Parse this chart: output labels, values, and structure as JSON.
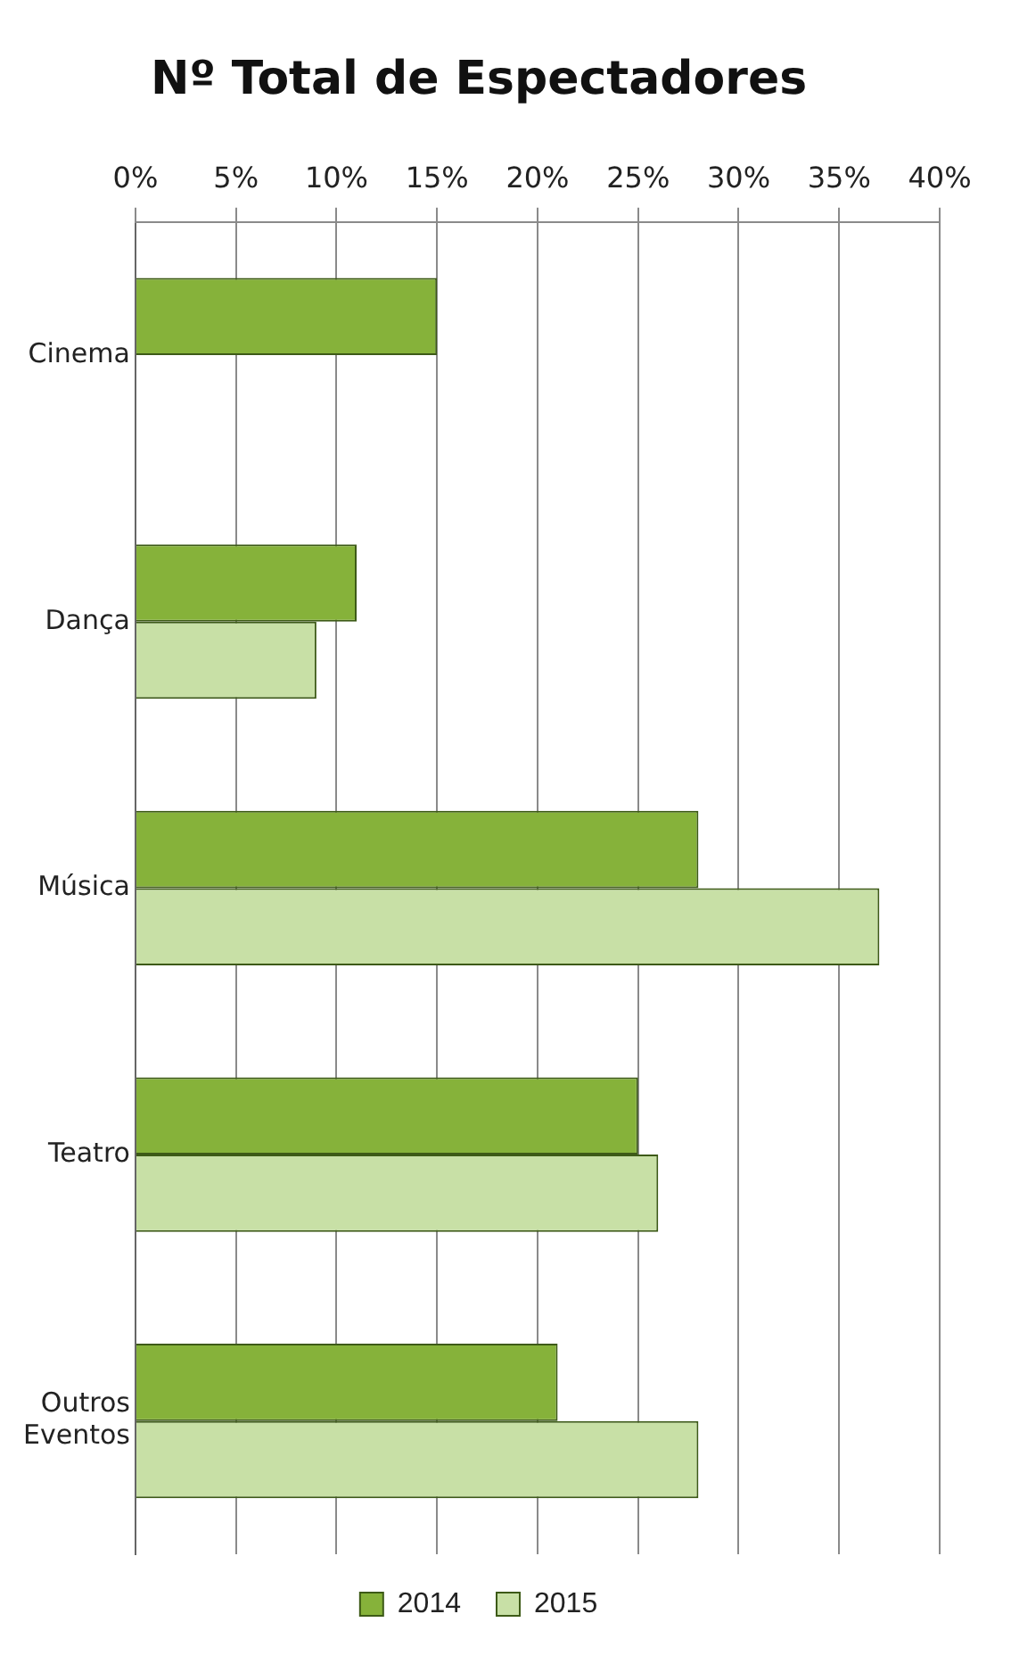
{
  "chart_data": {
    "type": "bar",
    "orientation": "horizontal",
    "title": "Nº Total de Espectadores",
    "categories": [
      "Cinema",
      "Dança",
      "Música",
      "Teatro",
      "Outros Eventos"
    ],
    "series": [
      {
        "name": "2014",
        "color": "#86b23a",
        "values": [
          15,
          11,
          28,
          25,
          21
        ]
      },
      {
        "name": "2015",
        "color": "#c8e0a6",
        "values": [
          null,
          9,
          37,
          26,
          28
        ]
      }
    ],
    "xlim": [
      0,
      40
    ],
    "xticks": [
      {
        "value": 0,
        "label": "0%"
      },
      {
        "value": 5,
        "label": "5%"
      },
      {
        "value": 10,
        "label": "10%"
      },
      {
        "value": 15,
        "label": "15%"
      },
      {
        "value": 20,
        "label": "20%"
      },
      {
        "value": 25,
        "label": "25%"
      },
      {
        "value": 30,
        "label": "30%"
      },
      {
        "value": 35,
        "label": "35%"
      },
      {
        "value": 40,
        "label": "40%"
      }
    ],
    "grid": "x",
    "legend": "bottom"
  }
}
